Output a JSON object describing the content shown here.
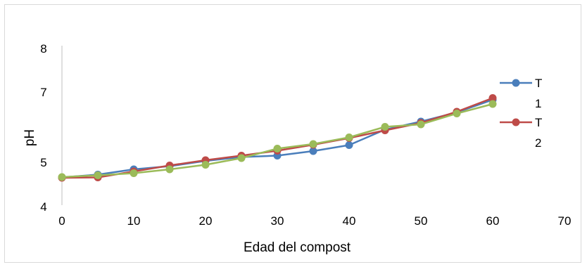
{
  "chart_data": {
    "type": "line",
    "xlabel": "Edad del compost",
    "ylabel": "pH",
    "xlim": [
      0,
      70
    ],
    "x_ticks": [
      "0",
      "10",
      "20",
      "30",
      "40",
      "50",
      "60",
      "70"
    ],
    "y_ticks": [
      "4",
      "5",
      "7",
      "8"
    ],
    "legend_position": "right",
    "x": [
      0,
      5,
      10,
      15,
      20,
      25,
      30,
      35,
      40,
      45,
      50,
      55,
      60
    ],
    "series": [
      {
        "name": "T 1",
        "color": "#4a7ebb",
        "values": [
          4.55,
          4.63,
          4.78,
          4.87,
          5.02,
          5.13,
          5.17,
          5.3,
          5.47,
          5.91,
          6.14,
          6.4,
          6.76
        ]
      },
      {
        "name": "T 2",
        "color": "#be4b48",
        "values": [
          4.54,
          4.55,
          4.72,
          4.89,
          5.04,
          5.17,
          5.31,
          5.48,
          5.67,
          5.89,
          6.1,
          6.42,
          6.81
        ]
      },
      {
        "name": "",
        "color": "#9bbb59",
        "values": [
          4.56,
          4.61,
          4.67,
          4.78,
          4.91,
          5.1,
          5.37,
          5.5,
          5.69,
          5.99,
          6.06,
          6.37,
          6.64
        ]
      }
    ]
  }
}
